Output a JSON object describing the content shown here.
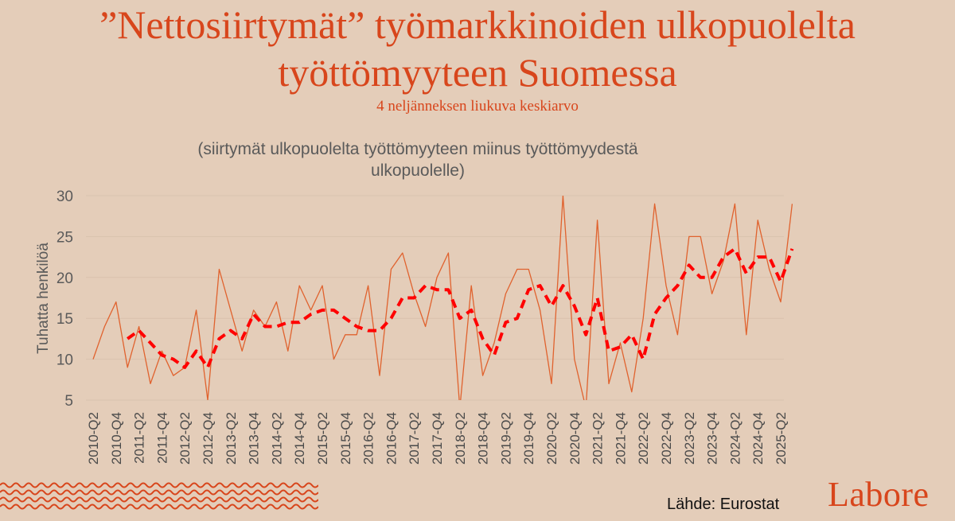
{
  "title_line1": "”Nettosiirtymät” työmarkkinoiden ulkopuolelta",
  "title_line2": "työttömyyteen Suomessa",
  "subtitle": "4 neljänneksen liukuva keskiarvo",
  "note_line1": "(siirtymät ulkopuolelta työttömyyteen miinus työttömyydestä",
  "note_line2": "ulkopuolelle)",
  "source": "Lähde: Eurostat",
  "brand": "Labore",
  "colors": {
    "background": "#e4cdb9",
    "accent": "#d8461c",
    "series_thin": "#e0622e",
    "series_avg": "#ff0000",
    "grid": "#d9c2ae"
  },
  "chart_data": {
    "type": "line",
    "ylabel": "Tuhatta henkilöä",
    "ylim": [
      5,
      30
    ],
    "yticks": [
      5,
      10,
      15,
      20,
      25,
      30
    ],
    "grid": true,
    "x": [
      "2010-Q2",
      "2010-Q3",
      "2010-Q4",
      "2011-Q1",
      "2011-Q2",
      "2011-Q3",
      "2011-Q4",
      "2012-Q1",
      "2012-Q2",
      "2012-Q3",
      "2012-Q4",
      "2013-Q1",
      "2013-Q2",
      "2013-Q3",
      "2013-Q4",
      "2014-Q1",
      "2014-Q2",
      "2014-Q3",
      "2014-Q4",
      "2015-Q1",
      "2015-Q2",
      "2015-Q3",
      "2015-Q4",
      "2016-Q1",
      "2016-Q2",
      "2016-Q3",
      "2016-Q4",
      "2017-Q1",
      "2017-Q2",
      "2017-Q3",
      "2017-Q4",
      "2018-Q1",
      "2018-Q2",
      "2018-Q3",
      "2018-Q4",
      "2019-Q1",
      "2019-Q2",
      "2019-Q3",
      "2019-Q4",
      "2020-Q1",
      "2020-Q2",
      "2020-Q3",
      "2020-Q4",
      "2021-Q1",
      "2021-Q2",
      "2021-Q3",
      "2021-Q4",
      "2022-Q1",
      "2022-Q2",
      "2022-Q3",
      "2022-Q4",
      "2023-Q1",
      "2023-Q2",
      "2023-Q3",
      "2023-Q4",
      "2024-Q1",
      "2024-Q2",
      "2024-Q3",
      "2024-Q4",
      "2025-Q1",
      "2025-Q2",
      "2025-Q3"
    ],
    "xticks": [
      "2010-Q2",
      "2010-Q4",
      "2011-Q2",
      "2011-Q4",
      "2012-Q2",
      "2012-Q4",
      "2013-Q2",
      "2013-Q4",
      "2014-Q2",
      "2014-Q4",
      "2015-Q2",
      "2015-Q4",
      "2016-Q2",
      "2016-Q4",
      "2017-Q2",
      "2017-Q4",
      "2018-Q2",
      "2018-Q4",
      "2019-Q2",
      "2019-Q4",
      "2020-Q2",
      "2020-Q4",
      "2021-Q2",
      "2021-Q4",
      "2022-Q2",
      "2022-Q4",
      "2023-Q2",
      "2023-Q4",
      "2024-Q2",
      "2024-Q4",
      "2025-Q2"
    ],
    "series": [
      {
        "values": [
          10,
          14,
          17,
          9,
          14,
          7,
          11,
          8,
          9,
          16,
          5,
          21,
          16,
          11,
          16,
          14,
          17,
          11,
          19,
          16,
          19,
          10,
          13,
          13,
          19,
          8,
          21,
          23,
          18,
          14,
          20,
          23,
          4,
          19,
          8,
          12,
          18,
          21,
          21,
          16,
          7,
          30,
          10,
          4,
          27,
          7,
          12,
          6,
          15,
          29,
          19,
          13,
          25,
          25,
          18,
          22,
          29,
          13,
          27,
          21,
          17,
          29
        ]
      },
      {
        "values": [
          null,
          null,
          null,
          12.5,
          13.5,
          12,
          10.5,
          10,
          9,
          11,
          9,
          12.5,
          13.5,
          12.5,
          15.5,
          14,
          14,
          14.5,
          14.5,
          15.5,
          16,
          16,
          15,
          14,
          13.5,
          13.5,
          15,
          17.5,
          17.5,
          19,
          18.5,
          18.5,
          15,
          16,
          12.5,
          10.5,
          14.5,
          15,
          18.5,
          19,
          16.5,
          19,
          16.5,
          13,
          17.5,
          11,
          11.5,
          13,
          10,
          15.5,
          17.5,
          19,
          21.5,
          20,
          20,
          22.5,
          23.5,
          20.5,
          22.5,
          22.5,
          19.5,
          23.5
        ]
      }
    ]
  }
}
